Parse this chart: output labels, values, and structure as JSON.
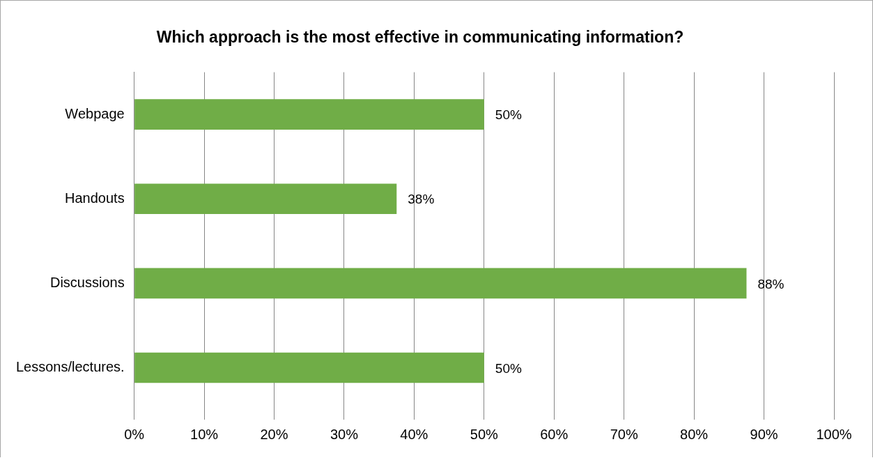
{
  "chart_data": {
    "type": "bar",
    "orientation": "horizontal",
    "title": "Which approach is the most effective in communicating information?",
    "categories": [
      "Webpage",
      "Handouts",
      "Discussions",
      "Lessons/lectures."
    ],
    "values": [
      50,
      37.5,
      87.5,
      50
    ],
    "value_labels": [
      "50%",
      "38%",
      "88%",
      "50%"
    ],
    "color": "#70ad47",
    "xlim": [
      0,
      100
    ],
    "xticks": [
      {
        "value": 0,
        "label": "0%"
      },
      {
        "value": 10,
        "label": "10%"
      },
      {
        "value": 20,
        "label": "20%"
      },
      {
        "value": 30,
        "label": "30%"
      },
      {
        "value": 40,
        "label": "40%"
      },
      {
        "value": 50,
        "label": "50%"
      },
      {
        "value": 60,
        "label": "60%"
      },
      {
        "value": 70,
        "label": "70%"
      },
      {
        "value": 80,
        "label": "80%"
      },
      {
        "value": 90,
        "label": "90%"
      },
      {
        "value": 100,
        "label": "100%"
      }
    ],
    "grid": "x"
  }
}
